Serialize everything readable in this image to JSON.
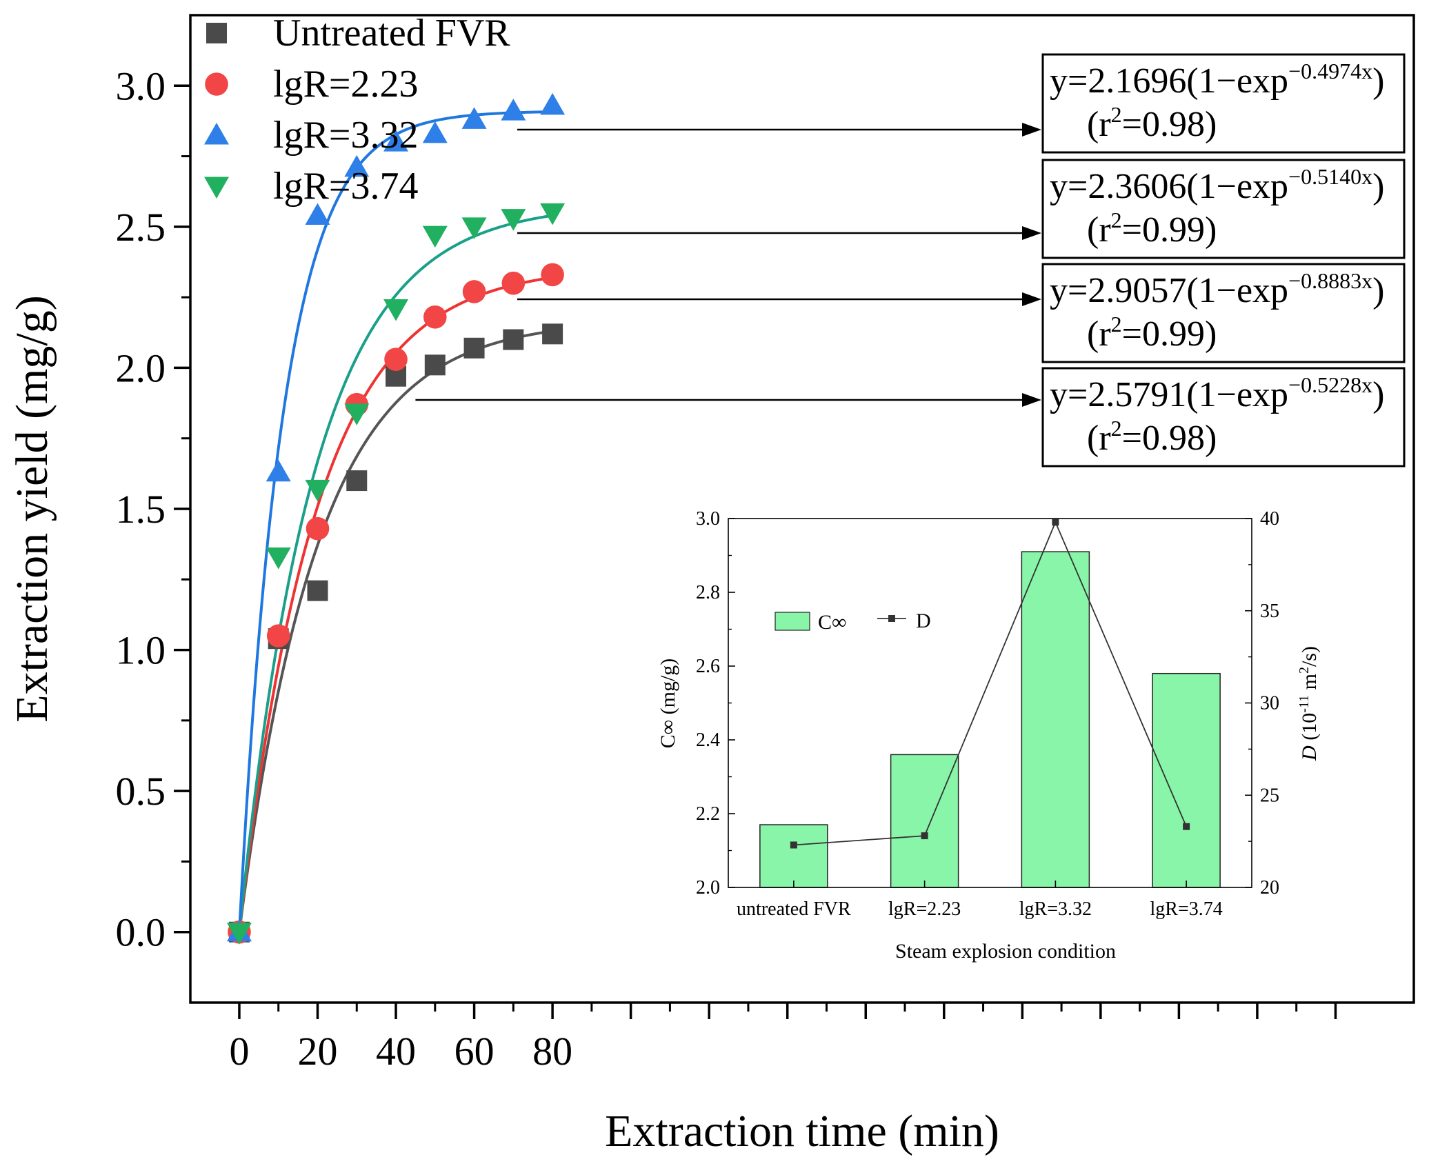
{
  "chart_data": [
    {
      "type": "scatter",
      "title": "",
      "xlabel": "Extraction time  (min)",
      "ylabel": "Extraction yield  (mg/g)",
      "xlim": [
        -12.5,
        300
      ],
      "ylim": [
        -0.25,
        3.25
      ],
      "x_ticks": [
        0,
        20,
        40,
        60,
        80
      ],
      "y_ticks": [
        0.0,
        0.5,
        1.0,
        1.5,
        2.0,
        2.5,
        3.0
      ],
      "x_tick_labels": [
        "0",
        "20",
        "40",
        "60",
        "80"
      ],
      "y_tick_labels": [
        "0.0",
        "0.5",
        "1.0",
        "1.5",
        "2.0",
        "2.5",
        "3.0"
      ],
      "legend_position": "top-left",
      "series": [
        {
          "name": "Untreated FVR",
          "marker": "square",
          "color": "#4a4a4a",
          "line_color": "#555555",
          "x": [
            0,
            10,
            20,
            30,
            40,
            50,
            60,
            70,
            80
          ],
          "y": [
            0.0,
            1.04,
            1.21,
            1.6,
            1.97,
            2.01,
            2.07,
            2.1,
            2.12
          ],
          "fit": {
            "a": 2.17,
            "k": 0.05
          }
        },
        {
          "name": "lgR=2.23",
          "marker": "circle",
          "color": "#f24545",
          "line_color": "#ee3333",
          "x": [
            0,
            10,
            20,
            30,
            40,
            50,
            60,
            70,
            80
          ],
          "y": [
            0.0,
            1.05,
            1.43,
            1.87,
            2.03,
            2.18,
            2.27,
            2.3,
            2.33
          ],
          "fit": {
            "a": 2.36,
            "k": 0.051
          }
        },
        {
          "name": "lgR=3.32",
          "marker": "triangle-up",
          "color": "#2f7fe8",
          "line_color": "#1f77e0",
          "x": [
            0,
            10,
            20,
            30,
            40,
            50,
            60,
            70,
            80
          ],
          "y": [
            0.0,
            1.63,
            2.54,
            2.71,
            2.8,
            2.83,
            2.88,
            2.91,
            2.93
          ],
          "fit": {
            "a": 2.91,
            "k": 0.089
          }
        },
        {
          "name": "lgR=3.74",
          "marker": "triangle-down",
          "color": "#20b060",
          "line_color": "#1aa08a",
          "x": [
            0,
            10,
            20,
            30,
            40,
            50,
            60,
            70,
            80
          ],
          "y": [
            0.0,
            1.33,
            1.57,
            1.84,
            2.21,
            2.47,
            2.5,
            2.53,
            2.55
          ],
          "fit": {
            "a": 2.58,
            "k": 0.052
          }
        }
      ],
      "annotations": [
        {
          "equation_prefix": "y=2.1696(1−exp",
          "exponent": "−0.4974x",
          "equation_suffix": ")",
          "r2_prefix": "(r",
          "r2_exp": "2",
          "r2_suffix": "=0.98)",
          "arrow_from": {
            "x": 71,
            "y": 2.85
          }
        },
        {
          "equation_prefix": "y=2.3606(1−exp",
          "exponent": "−0.5140x",
          "equation_suffix": ")",
          "r2_prefix": "(r",
          "r2_exp": "2",
          "r2_suffix": "=0.99)",
          "arrow_from": {
            "x": 71,
            "y": 2.48
          }
        },
        {
          "equation_prefix": "y=2.9057(1−exp",
          "exponent": "−0.8883x",
          "equation_suffix": ")",
          "r2_prefix": "(r",
          "r2_exp": "2",
          "r2_suffix": "=0.99)",
          "arrow_from": {
            "x": 71,
            "y": 2.25
          }
        },
        {
          "equation_prefix": "y=2.5791(1−exp",
          "exponent": "−0.5228x",
          "equation_suffix": ")",
          "r2_prefix": "(r",
          "r2_exp": "2",
          "r2_suffix": "=0.98)",
          "arrow_from": {
            "x": 45,
            "y": 1.89
          }
        }
      ]
    },
    {
      "type": "bar",
      "title": "",
      "xlabel": "Steam explosion condition",
      "ylabel": "C∞ (mg/g)",
      "ylabel_right_prefix": "D",
      "ylabel_right_suffix": " (10",
      "ylabel_right_exp1": "-11",
      "ylabel_right_mid": " m",
      "ylabel_right_exp2": "2",
      "ylabel_right_end": "/s)",
      "categories": [
        "untreated FVR",
        "lgR=2.23",
        "lgR=3.32",
        "lgR=3.74"
      ],
      "ylim": [
        2.0,
        3.0
      ],
      "y_ticks": [
        2.0,
        2.2,
        2.4,
        2.6,
        2.8,
        3.0
      ],
      "y_tick_labels": [
        "2.0",
        "2.2",
        "2.4",
        "2.6",
        "2.8",
        "3.0"
      ],
      "ylim_right": [
        20,
        40
      ],
      "y_ticks_right": [
        20,
        25,
        30,
        35,
        40
      ],
      "y_tick_labels_right": [
        "20",
        "25",
        "30",
        "35",
        "40"
      ],
      "series": [
        {
          "name": "C∞",
          "type": "bar",
          "color": "#88f5a8",
          "values": [
            2.17,
            2.36,
            2.91,
            2.58
          ]
        },
        {
          "name": "D",
          "type": "line",
          "color": "#000000",
          "values": [
            22.3,
            22.8,
            39.8,
            23.3
          ]
        }
      ],
      "legend_position": "upper-left"
    }
  ]
}
